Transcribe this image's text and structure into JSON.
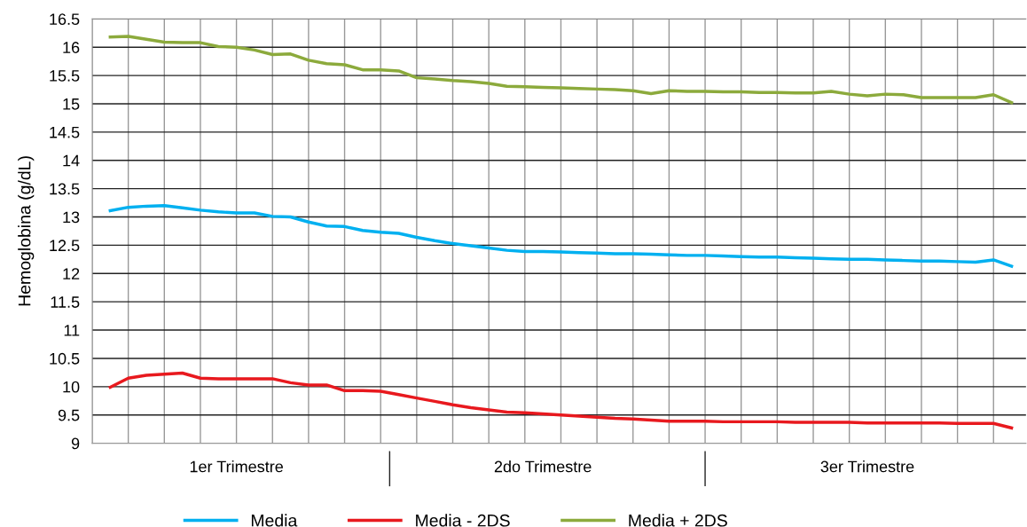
{
  "chart_data": {
    "type": "line",
    "ylabel": "Hemoglobina (g/dL)",
    "ylim": [
      9,
      16.5
    ],
    "yticks": [
      9,
      9.5,
      10,
      10.5,
      11,
      11.5,
      12,
      12.5,
      13,
      13.5,
      14,
      14.5,
      15,
      15.5,
      16,
      16.5
    ],
    "categories": [
      null,
      null,
      null,
      null,
      null,
      null,
      null,
      "1er Trimestre",
      null,
      null,
      null,
      null,
      null,
      null,
      null,
      null,
      null,
      null,
      null,
      null,
      null,
      null,
      null,
      null,
      "2do Trimestre",
      null,
      null,
      null,
      null,
      null,
      null,
      null,
      null,
      null,
      null,
      null,
      null,
      null,
      null,
      null,
      null,
      null,
      "3er Trimestre",
      null,
      null,
      null,
      null,
      null,
      null,
      null,
      null
    ],
    "grid": true,
    "legend": "bottom",
    "marker": "none",
    "line_style": "solid",
    "series": [
      {
        "name": "Media",
        "color": "#00b0f0",
        "values": [
          13.11,
          13.17,
          13.19,
          13.2,
          13.16,
          13.12,
          13.09,
          13.07,
          13.07,
          13.01,
          13.0,
          12.91,
          12.84,
          12.83,
          12.76,
          12.73,
          12.71,
          12.64,
          12.58,
          12.53,
          12.49,
          12.45,
          12.41,
          12.39,
          12.39,
          12.38,
          12.37,
          12.36,
          12.35,
          12.35,
          12.34,
          12.33,
          12.32,
          12.32,
          12.31,
          12.3,
          12.29,
          12.29,
          12.28,
          12.27,
          12.26,
          12.25,
          12.25,
          12.24,
          12.23,
          12.22,
          12.22,
          12.21,
          12.2,
          12.24,
          12.13
        ]
      },
      {
        "name": "Media - 2DS",
        "color": "#e8191e",
        "values": [
          9.99,
          10.15,
          10.2,
          10.22,
          10.24,
          10.15,
          10.14,
          10.14,
          10.14,
          10.14,
          10.07,
          10.03,
          10.03,
          9.93,
          9.93,
          9.92,
          9.86,
          9.8,
          9.74,
          9.68,
          9.63,
          9.59,
          9.55,
          9.54,
          9.52,
          9.5,
          9.48,
          9.46,
          9.44,
          9.43,
          9.41,
          9.39,
          9.39,
          9.39,
          9.38,
          9.38,
          9.38,
          9.38,
          9.37,
          9.37,
          9.37,
          9.37,
          9.36,
          9.36,
          9.36,
          9.36,
          9.36,
          9.35,
          9.35,
          9.35,
          9.27
        ]
      },
      {
        "name": "Media + 2DS",
        "color": "#8caa3c",
        "values": [
          16.18,
          16.19,
          16.14,
          16.09,
          16.08,
          16.08,
          16.01,
          16.0,
          15.95,
          15.87,
          15.88,
          15.77,
          15.71,
          15.69,
          15.6,
          15.6,
          15.58,
          15.46,
          15.44,
          15.41,
          15.39,
          15.36,
          15.31,
          15.3,
          15.29,
          15.28,
          15.27,
          15.26,
          15.25,
          15.23,
          15.18,
          15.23,
          15.22,
          15.22,
          15.21,
          15.21,
          15.2,
          15.2,
          15.19,
          15.19,
          15.22,
          15.17,
          15.14,
          15.17,
          15.16,
          15.11,
          15.11,
          15.11,
          15.11,
          15.16,
          15.02
        ]
      }
    ]
  }
}
